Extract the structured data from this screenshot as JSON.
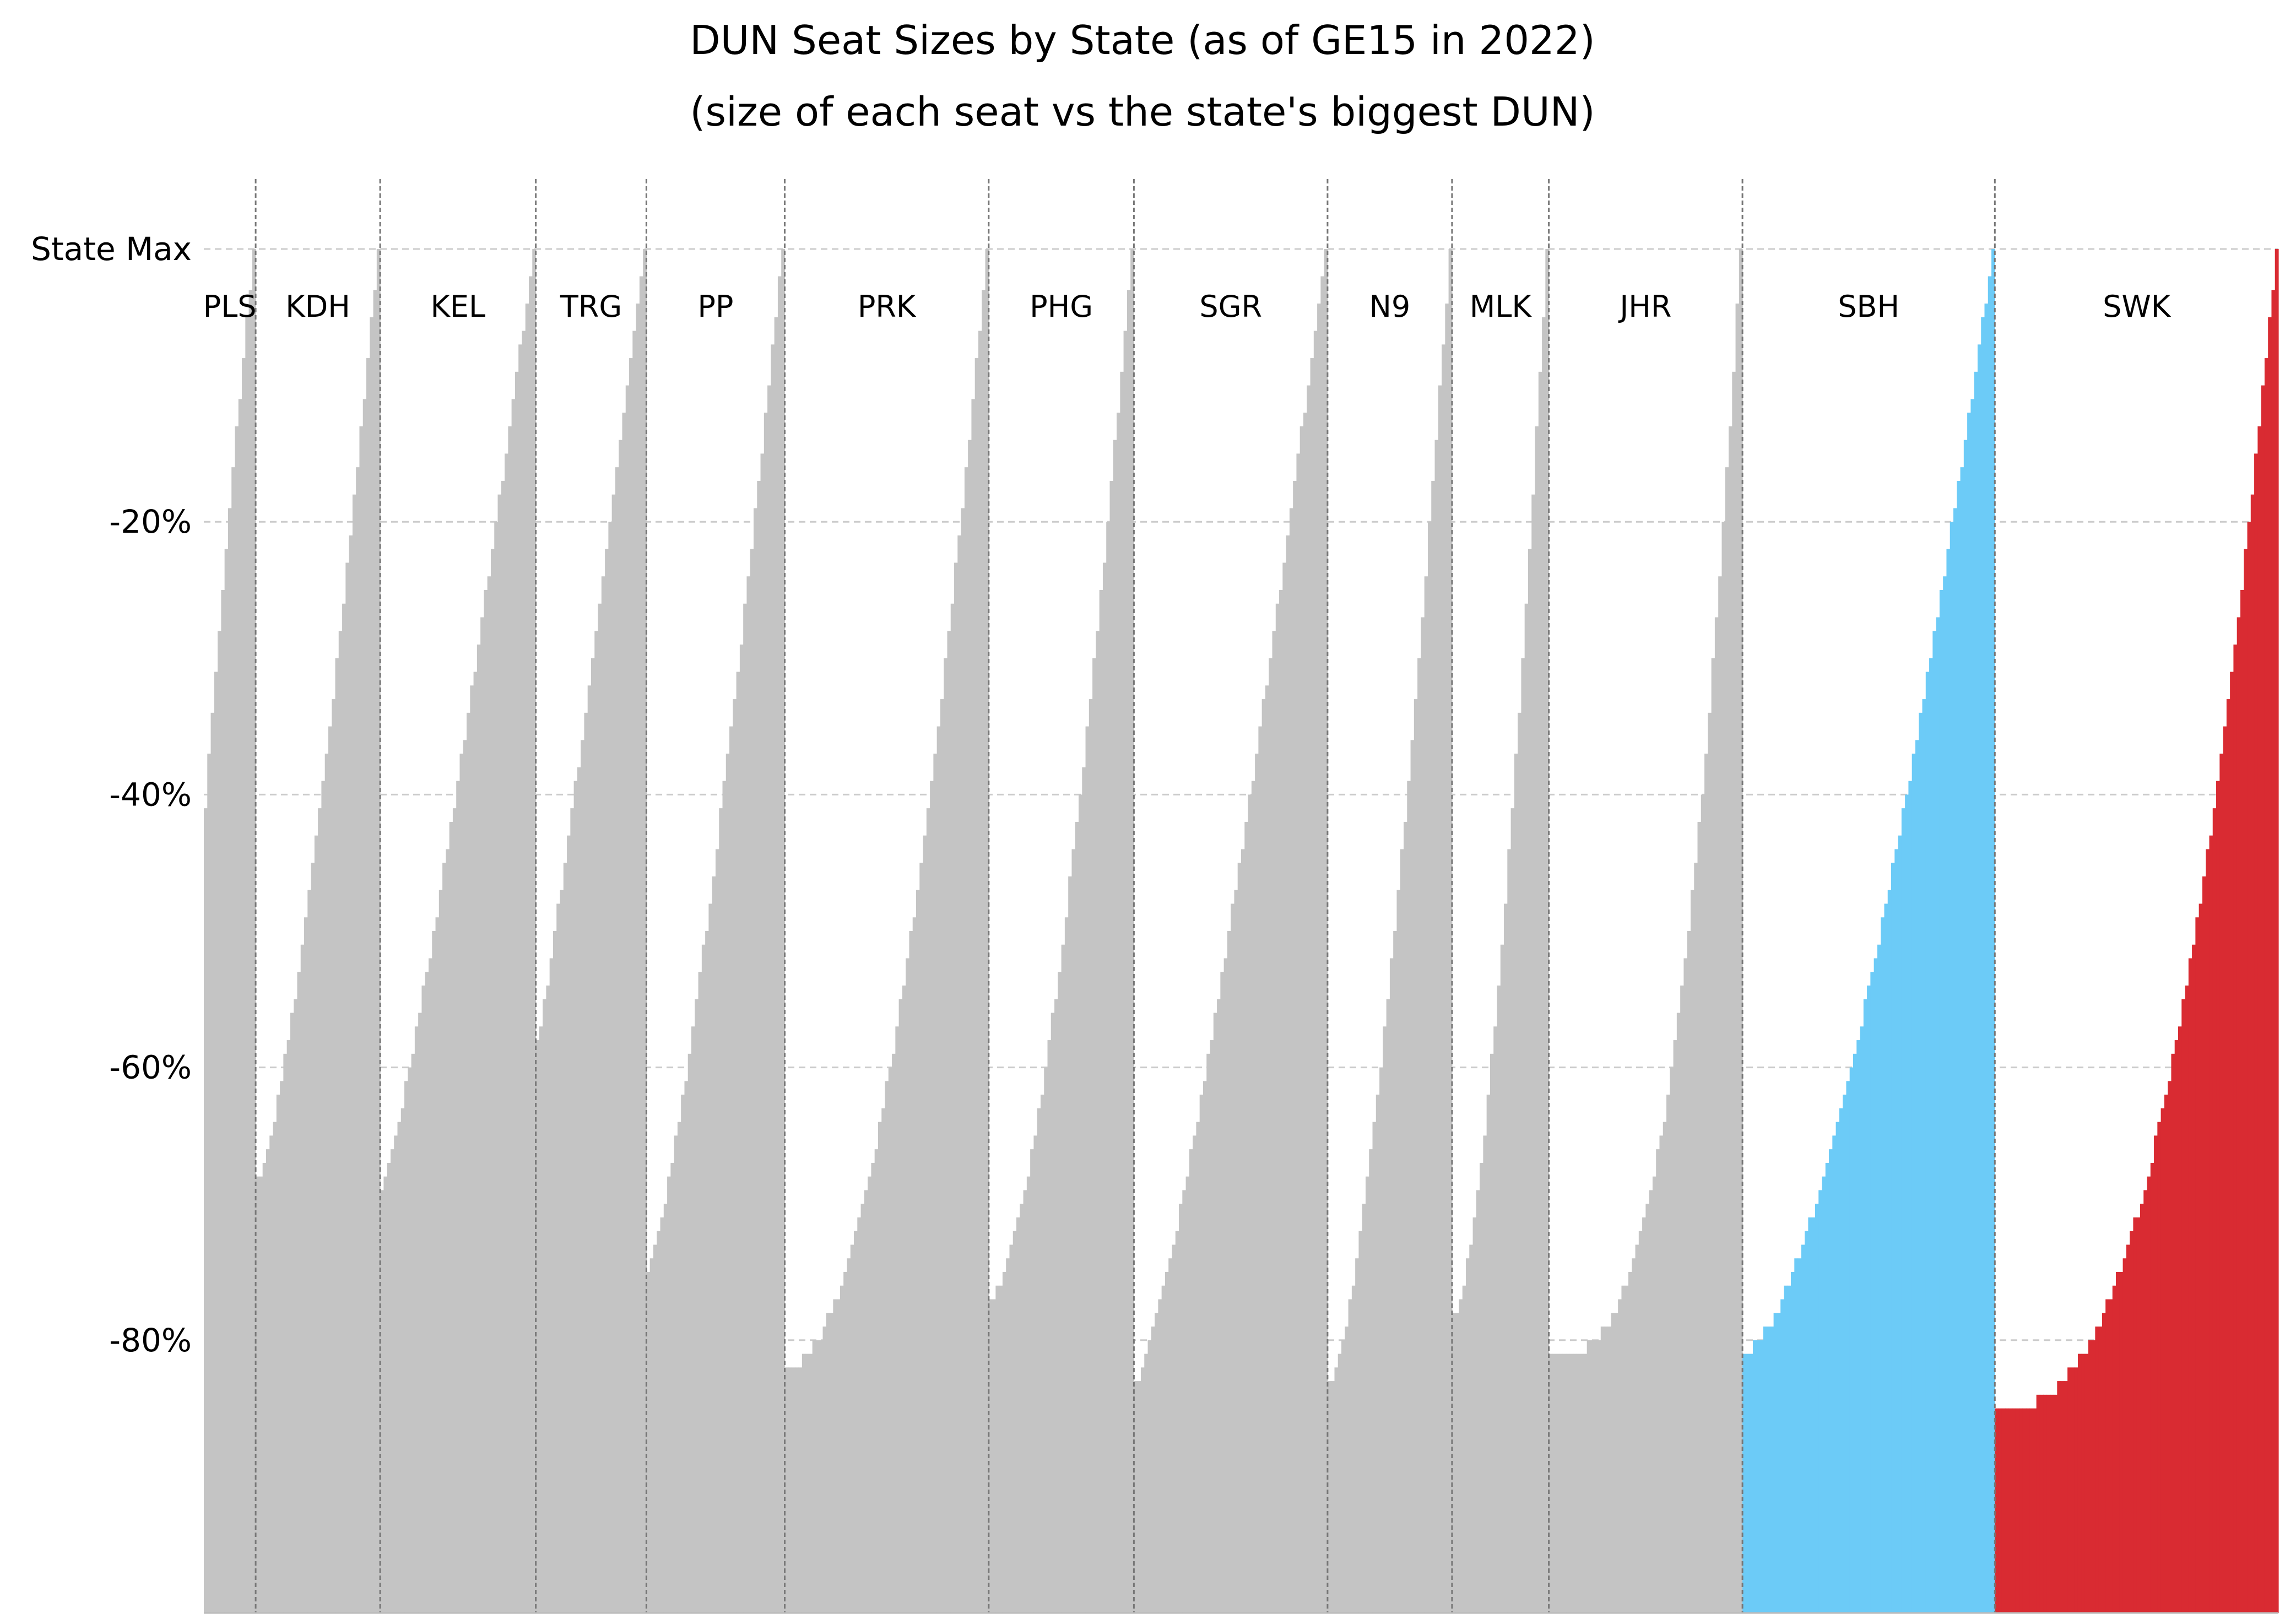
{
  "title": "DUN Seat Sizes by State (as of GE15 in 2022)",
  "subtitle": "(size of each seat vs the state's biggest DUN)",
  "colors": {
    "default": "#c4c4c4",
    "SBH": "#6ccbf7",
    "SWK": "#d92b32",
    "grid": "#cccccc",
    "separator": "#777777"
  },
  "chart_data": {
    "type": "bar",
    "title": "DUN Seat Sizes by State (as of GE15 in 2022)",
    "subtitle": "(size of each seat vs the state's biggest DUN)",
    "ylim": [
      -100,
      0
    ],
    "yticks": [
      {
        "value": 0,
        "label": "State Max"
      },
      {
        "value": -20,
        "label": "-20%"
      },
      {
        "value": -40,
        "label": "-40%"
      },
      {
        "value": -60,
        "label": "-60%"
      },
      {
        "value": -80,
        "label": "-80%"
      }
    ],
    "grid": "horizontal dashed",
    "states": [
      {
        "name": "PLS",
        "seats": 15,
        "min": -41,
        "max": 0,
        "shape": 0.9
      },
      {
        "name": "KDH",
        "seats": 36,
        "min": -68,
        "max": 0,
        "shape": 1.4
      },
      {
        "name": "KEL",
        "seats": 45,
        "min": -69,
        "max": 0,
        "shape": 1.2
      },
      {
        "name": "TRG",
        "seats": 32,
        "min": -58,
        "max": 0,
        "shape": 1.1
      },
      {
        "name": "PP",
        "seats": 40,
        "min": -75,
        "max": 0,
        "shape": 1.3
      },
      {
        "name": "PRK",
        "seats": 59,
        "min": -82,
        "max": 0,
        "shape": 2.0
      },
      {
        "name": "PHG",
        "seats": 42,
        "min": -77,
        "max": 0,
        "shape": 1.6
      },
      {
        "name": "SGR",
        "seats": 56,
        "min": -83,
        "max": 0,
        "shape": 1.3
      },
      {
        "name": "N9",
        "seats": 36,
        "min": -83,
        "max": 0,
        "shape": 1.5
      },
      {
        "name": "MLK",
        "seats": 28,
        "min": -78,
        "max": 0,
        "shape": 1.6
      },
      {
        "name": "JHR",
        "seats": 56,
        "min": -81,
        "max": 0,
        "shape": 3.0
      },
      {
        "name": "SBH",
        "seats": 73,
        "min": -81,
        "max": 0,
        "shape": 1.6
      },
      {
        "name": "SWK",
        "seats": 82,
        "min": -85,
        "max": 0,
        "shape": 2.6
      }
    ]
  }
}
